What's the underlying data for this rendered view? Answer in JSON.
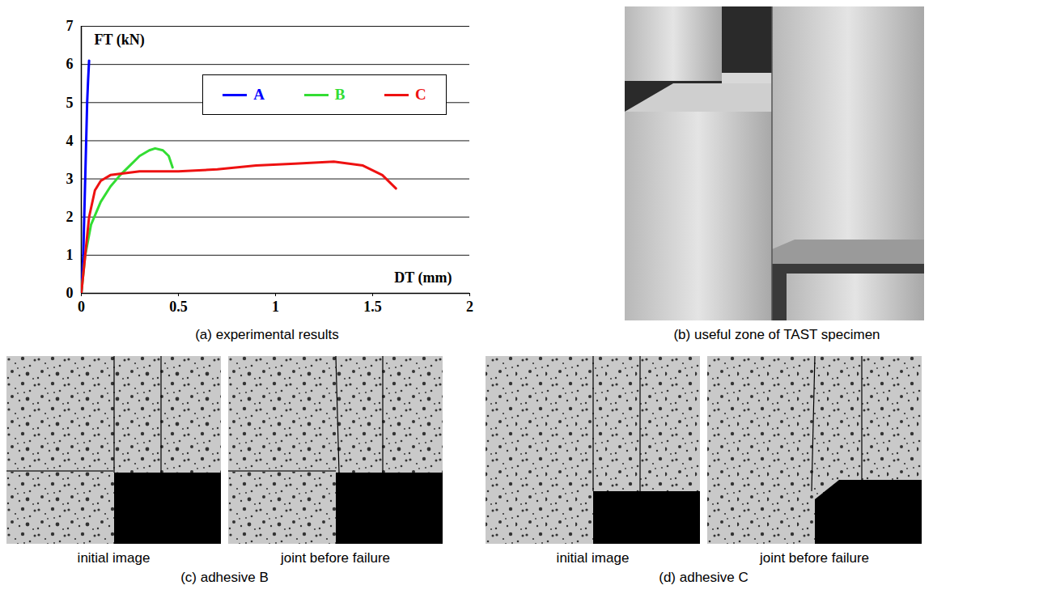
{
  "chart_data": {
    "type": "line",
    "x_label": "DT (mm)",
    "y_label": "FT (kN)",
    "xlim": [
      0,
      2
    ],
    "xticks": [
      0,
      0.5,
      1,
      1.5,
      2
    ],
    "ylim": [
      0,
      7
    ],
    "yticks": [
      0,
      1,
      2,
      3,
      4,
      5,
      6,
      7
    ],
    "grid": "y",
    "legend": "top right",
    "series": [
      {
        "name": "A",
        "color": "#0000ff",
        "x": [
          0,
          0.01,
          0.015,
          0.02,
          0.025,
          0.03,
          0.035,
          0.04
        ],
        "values": [
          0,
          1,
          2,
          3,
          4,
          5,
          5.6,
          6.1
        ]
      },
      {
        "name": "B",
        "color": "#33dd33",
        "x": [
          0,
          0.02,
          0.05,
          0.1,
          0.15,
          0.2,
          0.25,
          0.3,
          0.35,
          0.38,
          0.42,
          0.45,
          0.47
        ],
        "values": [
          0,
          1,
          1.8,
          2.4,
          2.8,
          3.1,
          3.35,
          3.6,
          3.75,
          3.8,
          3.75,
          3.6,
          3.3
        ]
      },
      {
        "name": "C",
        "color": "#ee1111",
        "x": [
          0,
          0.02,
          0.04,
          0.07,
          0.1,
          0.15,
          0.3,
          0.5,
          0.7,
          0.9,
          1.1,
          1.3,
          1.45,
          1.55,
          1.62
        ],
        "values": [
          0,
          1,
          2,
          2.7,
          2.95,
          3.1,
          3.2,
          3.2,
          3.25,
          3.35,
          3.4,
          3.45,
          3.35,
          3.1,
          2.75
        ]
      }
    ]
  },
  "figure": {
    "panels": [
      {
        "caption": "(a) experimental results"
      },
      {
        "caption": "(b) useful zone of TAST specimen"
      },
      {
        "caption": "(c) adhesive B",
        "images": [
          "initial image",
          "joint before failure"
        ]
      },
      {
        "caption": "(d) adhesive C",
        "images": [
          "initial image",
          "joint before failure"
        ]
      }
    ]
  }
}
